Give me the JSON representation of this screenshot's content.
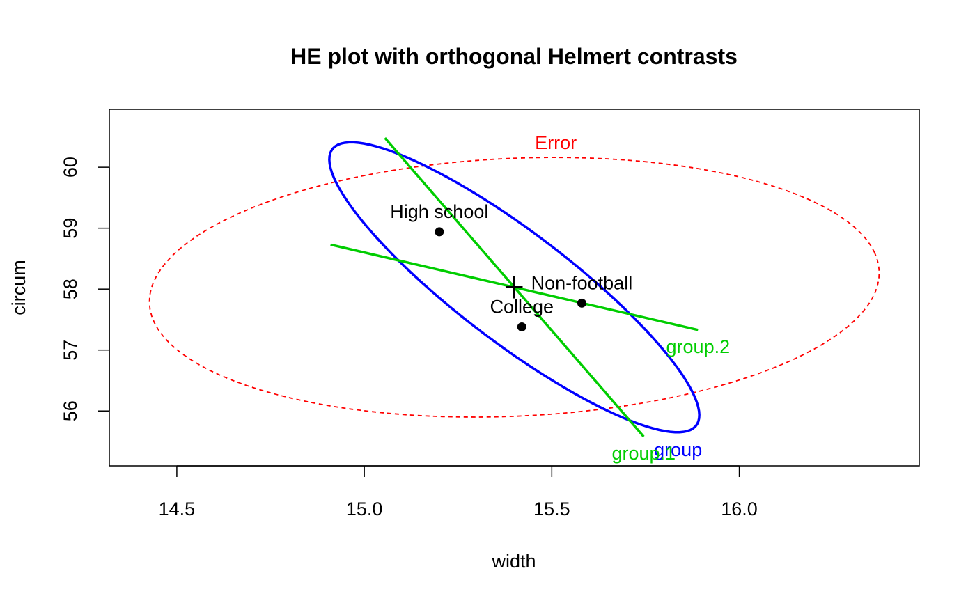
{
  "chart_data": {
    "type": "scatter",
    "title": "HE plot with orthogonal Helmert contrasts",
    "xlabel": "width",
    "ylabel": "circum",
    "xlim": [
      14.32,
      16.48
    ],
    "ylim": [
      55.1,
      60.95
    ],
    "xticks": [
      14.5,
      15.0,
      15.5,
      16.0
    ],
    "xtick_labels": [
      "14.5",
      "15.0",
      "15.5",
      "16.0"
    ],
    "yticks": [
      56,
      57,
      58,
      59,
      60
    ],
    "ytick_labels": [
      "56",
      "57",
      "58",
      "59",
      "60"
    ],
    "grid": false,
    "group_means": [
      {
        "label": "High school",
        "x": 15.2,
        "y": 58.94
      },
      {
        "label": "Non-football",
        "x": 15.58,
        "y": 57.77
      },
      {
        "label": "College",
        "x": 15.42,
        "y": 57.38
      }
    ],
    "grand_mean": {
      "x": 15.4,
      "y": 58.03
    },
    "ellipses": [
      {
        "label": "Error",
        "color": "#ff0000",
        "dashed": true,
        "center": {
          "x": 15.4,
          "y": 58.03
        },
        "a": {
          "x": 0.96,
          "y": 0.58
        },
        "b": {
          "x": 0.16,
          "y": -2.05
        }
      },
      {
        "label": "group",
        "color": "#0000ff",
        "dashed": false,
        "center": {
          "x": 15.4,
          "y": 58.03
        },
        "a": {
          "x": -0.47,
          "y": 2.34
        },
        "b": {
          "x": 0.15,
          "y": 0.43
        }
      }
    ],
    "contrasts": [
      {
        "label": "group.1",
        "color": "#00cd00",
        "from": {
          "x": 15.055,
          "y": 60.48
        },
        "to": {
          "x": 15.745,
          "y": 55.58
        }
      },
      {
        "label": "group.2",
        "color": "#00cd00",
        "from": {
          "x": 14.91,
          "y": 58.73
        },
        "to": {
          "x": 15.89,
          "y": 57.33
        }
      }
    ]
  }
}
